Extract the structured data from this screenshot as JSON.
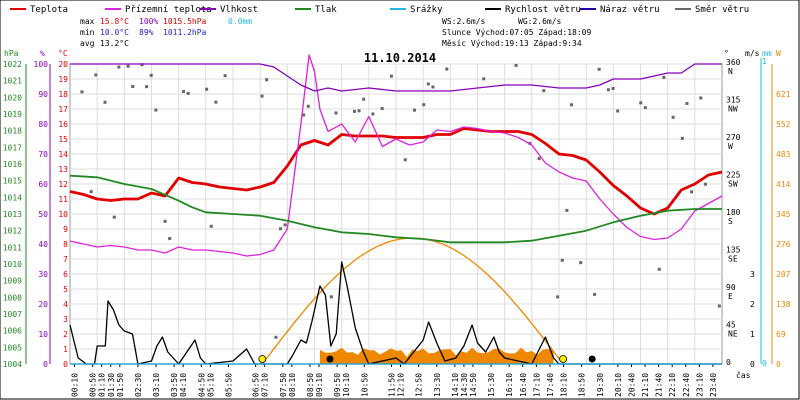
{
  "chart_data": {
    "type": "line",
    "title": "11.10.2014",
    "xlabel": "čas",
    "legend": {
      "placement": "top",
      "items": [
        {
          "name": "Teplota",
          "color": "#e00000"
        },
        {
          "name": "Přízemní teplota",
          "color": "#dd22dd"
        },
        {
          "name": "Vlhkost",
          "color": "#8800bb"
        },
        {
          "name": "Tlak",
          "color": "#228822"
        },
        {
          "name": "Srážky",
          "color": "#22bbdd"
        },
        {
          "name": "Rychlost větru",
          "color": "#000000"
        },
        {
          "name": "Náraz větru",
          "color": "#2200aa"
        },
        {
          "name": "Směr větru",
          "color": "#666666"
        }
      ]
    },
    "stats": {
      "max": {
        "label": "max",
        "temp": "15.8°C",
        "hum": "100%",
        "pres": "1015.5hPa",
        "rain": "0.0mm"
      },
      "min": {
        "label": "min",
        "temp": "10.0°C",
        "hum": "89%",
        "pres": "1011.2hPa"
      },
      "avg": {
        "label": "avg",
        "temp": "13.2°C"
      }
    },
    "info": {
      "ws": "WS:2.6m/s",
      "wg": "WG:2.6m/s",
      "sun": "Slunce Východ:07:05  Západ:18:09",
      "moon": "Měsíc  Východ:19:13  Západ:9:34"
    },
    "axes": {
      "hpa": {
        "unit": "hPa",
        "ticks": [
          "1022",
          "1021",
          "1020",
          "1019",
          "1018",
          "1017",
          "1016",
          "1015",
          "1014",
          "1013",
          "1012",
          "1011",
          "1010",
          "1009",
          "1008",
          "1007",
          "1006",
          "1005",
          "1004"
        ]
      },
      "pct": {
        "unit": "%",
        "ticks": [
          "100",
          "90",
          "80",
          "70",
          "60",
          "50",
          "40",
          "30",
          "20",
          "10",
          "0"
        ]
      },
      "temp": {
        "unit": "°C",
        "ticks": [
          "20",
          "19",
          "18",
          "17",
          "16",
          "15",
          "14",
          "13",
          "12",
          "11",
          "10",
          "9",
          "8",
          "7",
          "6",
          "5",
          "4",
          "3",
          "2",
          "1",
          "0"
        ]
      },
      "dir": {
        "unit": "°",
        "ticks": [
          "360",
          "315",
          "270",
          "225",
          "180",
          "135",
          "90",
          "45",
          "0"
        ],
        "labels": [
          "N",
          "NW",
          "W",
          "SW",
          "S",
          "SE",
          "E",
          "NE",
          ""
        ]
      },
      "wind": {
        "unit": "m/s",
        "ticks": [
          "3",
          "2",
          "1",
          "0"
        ]
      },
      "rain": {
        "unit": "mm",
        "ticks": [
          "1",
          "0"
        ]
      },
      "rad": {
        "unit": "W",
        "ticks": [
          "621",
          "552",
          "483",
          "414",
          "345",
          "276",
          "207",
          "138",
          "69",
          "0"
        ]
      }
    },
    "x": [
      "00:10",
      "00:50",
      "01:10",
      "01:30",
      "01:50",
      "02:30",
      "03:10",
      "03:50",
      "04:10",
      "04:50",
      "05:10",
      "05:50",
      "06:50",
      "07:10",
      "07:50",
      "08:10",
      "08:50",
      "09:10",
      "09:50",
      "10:10",
      "10:50",
      "11:50",
      "12:10",
      "12:50",
      "13:30",
      "14:10",
      "14:30",
      "14:50",
      "15:30",
      "16:10",
      "16:40",
      "17:10",
      "17:40",
      "18:10",
      "18:50",
      "19:30",
      "20:10",
      "20:40",
      "21:10",
      "21:40",
      "22:10",
      "22:40",
      "23:10",
      "23:40"
    ],
    "series": [
      {
        "name": "Teplota",
        "unit": "°C",
        "color": "#e00000",
        "points": [
          [
            0,
            11.5
          ],
          [
            0.5,
            11.3
          ],
          [
            1,
            11.0
          ],
          [
            1.5,
            10.9
          ],
          [
            2,
            11.0
          ],
          [
            2.5,
            11.0
          ],
          [
            3,
            11.4
          ],
          [
            3.5,
            11.2
          ],
          [
            4,
            12.4
          ],
          [
            4.5,
            12.1
          ],
          [
            5,
            12.0
          ],
          [
            5.5,
            11.8
          ],
          [
            6,
            11.7
          ],
          [
            6.5,
            11.6
          ],
          [
            7,
            11.8
          ],
          [
            7.5,
            12.1
          ],
          [
            8,
            13.2
          ],
          [
            8.5,
            14.6
          ],
          [
            9,
            14.9
          ],
          [
            9.5,
            14.6
          ],
          [
            10,
            15.3
          ],
          [
            10.5,
            15.2
          ],
          [
            11,
            15.2
          ],
          [
            11.5,
            15.2
          ],
          [
            12,
            15.1
          ],
          [
            12.5,
            15.1
          ],
          [
            13,
            15.1
          ],
          [
            13.5,
            15.3
          ],
          [
            14,
            15.3
          ],
          [
            14.5,
            15.7
          ],
          [
            15,
            15.6
          ],
          [
            15.5,
            15.5
          ],
          [
            16,
            15.5
          ],
          [
            16.5,
            15.5
          ],
          [
            17,
            15.3
          ],
          [
            17.5,
            14.7
          ],
          [
            18,
            14.0
          ],
          [
            18.5,
            13.9
          ],
          [
            19,
            13.6
          ],
          [
            19.5,
            12.8
          ],
          [
            20,
            11.9
          ],
          [
            20.5,
            11.2
          ],
          [
            21,
            10.4
          ],
          [
            21.5,
            10.0
          ],
          [
            22,
            10.4
          ],
          [
            22.5,
            11.6
          ],
          [
            23,
            12.0
          ],
          [
            23.5,
            12.6
          ],
          [
            24,
            12.8
          ]
        ]
      },
      {
        "name": "Přízemní teplota",
        "unit": "°C",
        "color": "#dd22dd",
        "points": [
          [
            0,
            8.2
          ],
          [
            0.5,
            8.0
          ],
          [
            1,
            7.8
          ],
          [
            1.5,
            7.9
          ],
          [
            2,
            7.8
          ],
          [
            2.5,
            7.6
          ],
          [
            3,
            7.6
          ],
          [
            3.5,
            7.4
          ],
          [
            4,
            7.8
          ],
          [
            4.5,
            7.6
          ],
          [
            5,
            7.6
          ],
          [
            5.5,
            7.5
          ],
          [
            6,
            7.4
          ],
          [
            6.5,
            7.2
          ],
          [
            7,
            7.3
          ],
          [
            7.5,
            7.6
          ],
          [
            8,
            9.0
          ],
          [
            8.5,
            16.0
          ],
          [
            8.8,
            20.6
          ],
          [
            9,
            19.5
          ],
          [
            9.2,
            17.0
          ],
          [
            9.5,
            15.5
          ],
          [
            10,
            16.0
          ],
          [
            10.5,
            14.8
          ],
          [
            11,
            16.5
          ],
          [
            11.5,
            14.5
          ],
          [
            12,
            15.0
          ],
          [
            12.5,
            14.6
          ],
          [
            13,
            14.8
          ],
          [
            13.5,
            15.6
          ],
          [
            14,
            15.5
          ],
          [
            14.5,
            15.8
          ],
          [
            15,
            15.7
          ],
          [
            15.5,
            15.5
          ],
          [
            16,
            15.4
          ],
          [
            16.5,
            15.1
          ],
          [
            17,
            14.6
          ],
          [
            17.5,
            13.4
          ],
          [
            18,
            12.8
          ],
          [
            18.5,
            12.4
          ],
          [
            19,
            12.2
          ],
          [
            19.5,
            11.0
          ],
          [
            20,
            10.0
          ],
          [
            20.5,
            9.1
          ],
          [
            21,
            8.5
          ],
          [
            21.5,
            8.3
          ],
          [
            22,
            8.4
          ],
          [
            22.5,
            9.0
          ],
          [
            23,
            10.2
          ],
          [
            23.5,
            10.7
          ],
          [
            24,
            11.2
          ]
        ]
      },
      {
        "name": "Vlhkost",
        "unit": "%",
        "color": "#8800bb",
        "points": [
          [
            0,
            100
          ],
          [
            6,
            100
          ],
          [
            7,
            100
          ],
          [
            7.5,
            99
          ],
          [
            8,
            96
          ],
          [
            8.5,
            93
          ],
          [
            9,
            91
          ],
          [
            9.5,
            92
          ],
          [
            10,
            91
          ],
          [
            11,
            92
          ],
          [
            12,
            91
          ],
          [
            13,
            91
          ],
          [
            14,
            91
          ],
          [
            15,
            92
          ],
          [
            16,
            93
          ],
          [
            17,
            93
          ],
          [
            18,
            92
          ],
          [
            19,
            92
          ],
          [
            19.5,
            93
          ],
          [
            20,
            95
          ],
          [
            21,
            95
          ],
          [
            22,
            97
          ],
          [
            22.5,
            97
          ],
          [
            23,
            100
          ],
          [
            24,
            100
          ]
        ]
      },
      {
        "name": "Tlak",
        "unit": "hPa",
        "color": "#228822",
        "points": [
          [
            0,
            1015.3
          ],
          [
            1,
            1015.2
          ],
          [
            2,
            1014.8
          ],
          [
            3,
            1014.5
          ],
          [
            4,
            1013.8
          ],
          [
            4.5,
            1013.4
          ],
          [
            5,
            1013.1
          ],
          [
            6,
            1013.0
          ],
          [
            7,
            1012.9
          ],
          [
            8,
            1012.6
          ],
          [
            9,
            1012.2
          ],
          [
            10,
            1011.9
          ],
          [
            11,
            1011.8
          ],
          [
            12,
            1011.6
          ],
          [
            13,
            1011.5
          ],
          [
            14,
            1011.3
          ],
          [
            15,
            1011.3
          ],
          [
            16,
            1011.3
          ],
          [
            17,
            1011.4
          ],
          [
            18,
            1011.7
          ],
          [
            19,
            1012.0
          ],
          [
            20,
            1012.5
          ],
          [
            21,
            1012.9
          ],
          [
            22,
            1013.2
          ],
          [
            23,
            1013.3
          ],
          [
            24,
            1013.3
          ]
        ]
      },
      {
        "name": "Rychlost větru",
        "unit": "m/s",
        "color": "#000000",
        "points": [
          [
            0,
            1.3
          ],
          [
            0.3,
            0.2
          ],
          [
            0.6,
            0
          ],
          [
            0.9,
            0
          ],
          [
            1,
            0.6
          ],
          [
            1.3,
            0.6
          ],
          [
            1.4,
            2.1
          ],
          [
            1.6,
            1.8
          ],
          [
            1.8,
            1.3
          ],
          [
            2,
            1.1
          ],
          [
            2.3,
            1.0
          ],
          [
            2.5,
            0
          ],
          [
            3,
            0.1
          ],
          [
            3.2,
            0.6
          ],
          [
            3.4,
            0.9
          ],
          [
            3.6,
            0.4
          ],
          [
            4,
            0
          ],
          [
            4.6,
            0.8
          ],
          [
            4.8,
            0.2
          ],
          [
            5,
            0
          ],
          [
            6,
            0.1
          ],
          [
            6.5,
            0.5
          ],
          [
            6.8,
            0
          ],
          [
            7.5,
            0
          ],
          [
            8,
            0
          ],
          [
            8.2,
            0.3
          ],
          [
            8.5,
            0.8
          ],
          [
            8.7,
            0.7
          ],
          [
            8.9,
            1.4
          ],
          [
            9,
            1.8
          ],
          [
            9.2,
            2.6
          ],
          [
            9.4,
            2.3
          ],
          [
            9.6,
            0.6
          ],
          [
            9.8,
            1.0
          ],
          [
            10,
            3.4
          ],
          [
            10.2,
            2.6
          ],
          [
            10.5,
            1.2
          ],
          [
            10.8,
            0.4
          ],
          [
            11,
            0
          ],
          [
            12,
            0.2
          ],
          [
            12.3,
            0
          ],
          [
            13,
            0.8
          ],
          [
            13.2,
            1.4
          ],
          [
            13.5,
            0.7
          ],
          [
            13.8,
            0.1
          ],
          [
            14.2,
            0.2
          ],
          [
            14.5,
            0.6
          ],
          [
            14.8,
            1.3
          ],
          [
            15,
            0.7
          ],
          [
            15.3,
            0.4
          ],
          [
            15.6,
            0.9
          ],
          [
            15.8,
            0.4
          ],
          [
            16,
            0.2
          ],
          [
            17,
            0
          ],
          [
            17.5,
            0.9
          ],
          [
            17.8,
            0.2
          ],
          [
            18,
            0
          ],
          [
            19,
            0
          ],
          [
            24,
            0
          ]
        ]
      },
      {
        "name": "Náraz větru",
        "unit": "m/s",
        "color": "#2200aa",
        "points": [
          [
            0,
            0
          ],
          [
            24,
            0
          ]
        ]
      },
      {
        "name": "Srážky",
        "unit": "mm",
        "color": "#22bbdd",
        "points": [
          [
            0,
            0
          ],
          [
            24,
            0
          ]
        ]
      }
    ]
  }
}
